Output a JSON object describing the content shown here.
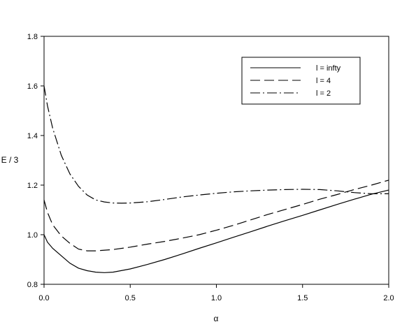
{
  "chart_data": {
    "type": "line",
    "title": "",
    "xlabel": "α",
    "ylabel": "E / 3",
    "xlim": [
      0.0,
      2.0
    ],
    "ylim": [
      0.8,
      1.8
    ],
    "grid": false,
    "legend_position": "top-right",
    "x_ticks": [
      "0.0",
      "0.5",
      "1.0",
      "1.5",
      "2.0"
    ],
    "x_tick_values": [
      0.0,
      0.5,
      1.0,
      1.5,
      2.0
    ],
    "y_ticks": [
      "0.8",
      "1.0",
      "1.2",
      "1.4",
      "1.6",
      "1.8"
    ],
    "y_tick_values": [
      0.8,
      1.0,
      1.2,
      1.4,
      1.6,
      1.8
    ],
    "series": [
      {
        "name": "l = infty",
        "style": "solid",
        "color": "#000000",
        "x": [
          0.0,
          0.02,
          0.05,
          0.1,
          0.15,
          0.2,
          0.25,
          0.3,
          0.35,
          0.4,
          0.5,
          0.6,
          0.7,
          0.8,
          0.9,
          1.0,
          1.1,
          1.2,
          1.3,
          1.4,
          1.5,
          1.6,
          1.7,
          1.8,
          1.9,
          2.0
        ],
        "y": [
          1.0,
          0.97,
          0.945,
          0.915,
          0.885,
          0.865,
          0.855,
          0.849,
          0.847,
          0.849,
          0.862,
          0.88,
          0.9,
          0.922,
          0.945,
          0.967,
          0.99,
          1.012,
          1.035,
          1.057,
          1.078,
          1.1,
          1.122,
          1.143,
          1.163,
          1.18
        ]
      },
      {
        "name": "l = 4",
        "style": "dashed",
        "color": "#000000",
        "x": [
          0.0,
          0.02,
          0.05,
          0.1,
          0.15,
          0.2,
          0.25,
          0.3,
          0.4,
          0.5,
          0.6,
          0.7,
          0.8,
          0.9,
          1.0,
          1.1,
          1.2,
          1.3,
          1.4,
          1.5,
          1.6,
          1.7,
          1.8,
          1.9,
          2.0
        ],
        "y": [
          1.14,
          1.09,
          1.04,
          0.995,
          0.965,
          0.942,
          0.935,
          0.935,
          0.94,
          0.95,
          0.962,
          0.973,
          0.986,
          1.0,
          1.018,
          1.038,
          1.06,
          1.082,
          1.102,
          1.122,
          1.143,
          1.162,
          1.182,
          1.2,
          1.22
        ]
      },
      {
        "name": "l = 2",
        "style": "dashdot",
        "color": "#000000",
        "x": [
          0.0,
          0.02,
          0.05,
          0.1,
          0.15,
          0.2,
          0.25,
          0.3,
          0.35,
          0.4,
          0.45,
          0.5,
          0.6,
          0.7,
          0.8,
          0.9,
          1.0,
          1.1,
          1.2,
          1.3,
          1.4,
          1.5,
          1.6,
          1.7,
          1.8,
          1.9,
          2.0
        ],
        "y": [
          1.6,
          1.52,
          1.43,
          1.32,
          1.245,
          1.195,
          1.16,
          1.14,
          1.132,
          1.128,
          1.127,
          1.128,
          1.133,
          1.142,
          1.152,
          1.16,
          1.167,
          1.173,
          1.177,
          1.18,
          1.182,
          1.183,
          1.182,
          1.177,
          1.17,
          1.165,
          1.165
        ]
      }
    ]
  }
}
